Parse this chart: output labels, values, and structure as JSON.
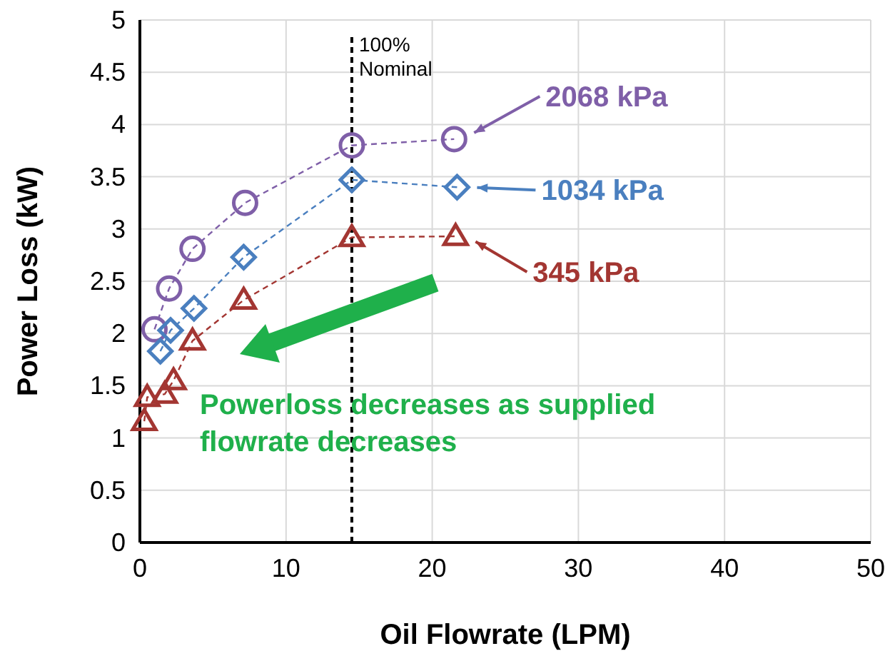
{
  "chart_data": {
    "type": "line",
    "xlabel": "Oil Flowrate (LPM)",
    "ylabel": "Power Loss (kW)",
    "xlim": [
      0,
      50
    ],
    "xticks": [
      0,
      10,
      20,
      30,
      40,
      50
    ],
    "ylim": [
      0,
      5
    ],
    "yticks": [
      0,
      0.5,
      1,
      1.5,
      2,
      2.5,
      3,
      3.5,
      4,
      4.5,
      5
    ],
    "grid": true,
    "legend": "right",
    "line_style": "dashed",
    "series": [
      {
        "name": "2068 kPa",
        "color": "#7f5fa8",
        "marker": "circle",
        "x": [
          1,
          2,
          3.6,
          7.2,
          14.5,
          21.5
        ],
        "values": [
          2.04,
          2.43,
          2.81,
          3.25,
          3.8,
          3.86
        ]
      },
      {
        "name": "1034 kPa",
        "color": "#4a7fbf",
        "marker": "diamond",
        "x": [
          1.4,
          2.1,
          3.7,
          7.1,
          14.5,
          21.7
        ],
        "values": [
          1.83,
          2.03,
          2.24,
          2.73,
          3.47,
          3.4
        ]
      },
      {
        "name": "345 kPa",
        "color": "#a33632",
        "marker": "triangle",
        "x": [
          0.3,
          0.5,
          1.7,
          2.3,
          3.6,
          7.1,
          14.5,
          21.6
        ],
        "values": [
          1.16,
          1.39,
          1.42,
          1.55,
          1.93,
          2.32,
          2.92,
          2.93
        ]
      }
    ],
    "ref_lines": [
      {
        "axis": "x",
        "value": 14.5,
        "label": "100%\nNominal",
        "color": "#000000",
        "line_style": "dashed"
      }
    ],
    "annotations": [
      "Powerloss decreases as supplied\nflowrate decreases"
    ]
  }
}
